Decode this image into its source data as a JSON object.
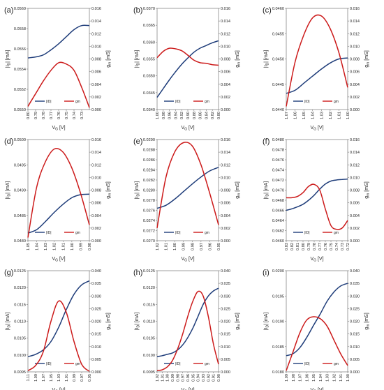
{
  "chart_data": [
    {
      "panel": "(a)",
      "type": "line",
      "x": [
        0.8,
        0.79,
        0.78,
        0.77,
        0.76,
        0.75,
        0.74,
        0.73,
        0.72
      ],
      "x_ticks": [
        "0.80",
        "0.79",
        "0.78",
        "0.77",
        "0.76",
        "0.75",
        "0.74",
        "0.73"
      ],
      "xlabel": "V",
      "xlabel_sub": "G",
      "xlabel_unit": " [V]",
      "ylabel_left": "|I",
      "ylabel_left_sub": "D",
      "ylabel_left_unit": "| [mA]",
      "ylabel_right": "g",
      "ylabel_right_sub": "m",
      "ylabel_right_unit": " [mS]",
      "ylim_left": [
        0.055,
        0.056
      ],
      "y_ticks_left": [
        "0.0550",
        "0.0552",
        "0.0554",
        "0.0556",
        "0.0558",
        "0.0560"
      ],
      "ylim_right": [
        0,
        0.016
      ],
      "y_ticks_right": [
        "0.000",
        "0.002",
        "0.004",
        "0.006",
        "0.008",
        "0.010",
        "0.012",
        "0.014",
        "0.016"
      ],
      "series": [
        {
          "name": "|ID|",
          "axis": "left",
          "color": "#1f3d7a",
          "values": [
            0.05551,
            0.05552,
            0.05554,
            0.05559,
            0.05565,
            0.05572,
            0.05579,
            0.05583,
            0.05583
          ]
        },
        {
          "name": "gm",
          "axis": "right",
          "color": "#cc1a1a",
          "values": [
            0.0005,
            0.0025,
            0.0045,
            0.0062,
            0.0074,
            0.0072,
            0.0062,
            0.0035,
            0.0003
          ]
        }
      ]
    },
    {
      "panel": "(b)",
      "type": "line",
      "x": [
        1.0,
        0.98,
        0.96,
        0.94,
        0.92,
        0.9,
        0.88,
        0.86,
        0.84,
        0.82,
        0.8
      ],
      "x_ticks": [
        "1.00",
        "0.98",
        "0.96",
        "0.94",
        "0.92",
        "0.90",
        "0.88",
        "0.86",
        "0.84",
        "0.82",
        "0.80"
      ],
      "xlabel": "V",
      "xlabel_sub": "G",
      "xlabel_unit": " [V]",
      "ylabel_left": "|I",
      "ylabel_left_sub": "D",
      "ylabel_left_unit": "| [mA]",
      "ylabel_right": "g",
      "ylabel_right_sub": "m",
      "ylabel_right_unit": " [mS]",
      "ylim_left": [
        0.034,
        0.037
      ],
      "y_ticks_left": [
        "0.0340",
        "0.0345",
        "0.0350",
        "0.0355",
        "0.0360",
        "0.0365",
        "0.0370"
      ],
      "ylim_right": [
        0,
        0.016
      ],
      "y_ticks_right": [
        "0.000",
        "0.002",
        "0.004",
        "0.006",
        "0.008",
        "0.010",
        "0.012",
        "0.014",
        "0.016"
      ],
      "series": [
        {
          "name": "|ID|",
          "axis": "left",
          "color": "#1f3d7a",
          "values": [
            0.03436,
            0.03462,
            0.03488,
            0.03512,
            0.03534,
            0.03553,
            0.0357,
            0.03582,
            0.0359,
            0.03598,
            0.03604
          ]
        },
        {
          "name": "gm",
          "axis": "right",
          "color": "#cc1a1a",
          "values": [
            0.0082,
            0.0092,
            0.0097,
            0.0096,
            0.0093,
            0.0086,
            0.0078,
            0.0074,
            0.0073,
            0.0071,
            0.007
          ]
        }
      ]
    },
    {
      "panel": "(c)",
      "type": "line",
      "x": [
        1.07,
        1.06,
        1.05,
        1.04,
        1.03,
        1.02,
        1.01,
        1.0
      ],
      "x_ticks": [
        "1.07",
        "1.06",
        "1.05",
        "1.04",
        "1.03",
        "1.02",
        "1.01",
        "1.00"
      ],
      "xlabel": "V",
      "xlabel_sub": "G",
      "xlabel_unit": " [V]",
      "ylabel_left": "|I",
      "ylabel_left_sub": "D",
      "ylabel_left_unit": "| [mA]",
      "ylabel_right": "g",
      "ylabel_right_sub": "m",
      "ylabel_right_unit": " [mS]",
      "ylim_left": [
        0.044,
        0.046
      ],
      "y_ticks_left": [
        "0.0440",
        "0.0445",
        "0.0450",
        "0.0455",
        "0.0460"
      ],
      "ylim_right": [
        0,
        0.016
      ],
      "y_ticks_right": [
        "0.000",
        "0.002",
        "0.004",
        "0.006",
        "0.008",
        "0.010",
        "0.012",
        "0.014",
        "0.016"
      ],
      "series": [
        {
          "name": "|ID|",
          "axis": "left",
          "color": "#1f3d7a",
          "values": [
            0.04432,
            0.04438,
            0.04452,
            0.04466,
            0.0448,
            0.04492,
            0.045,
            0.04502
          ]
        },
        {
          "name": "gm",
          "axis": "right",
          "color": "#cc1a1a",
          "values": [
            0.0005,
            0.0075,
            0.0118,
            0.0145,
            0.0148,
            0.0128,
            0.009,
            0.0035
          ]
        }
      ]
    },
    {
      "panel": "(d)",
      "type": "line",
      "x": [
        1.05,
        1.04,
        1.03,
        1.02,
        1.01,
        1.0,
        0.99,
        0.98
      ],
      "x_ticks": [
        "1.05",
        "1.04",
        "1.03",
        "1.02",
        "1.01",
        "1.00",
        "0.99",
        "0.98"
      ],
      "xlabel": "V",
      "xlabel_sub": "G",
      "xlabel_unit": " [V]",
      "ylabel_left": "|I",
      "ylabel_left_sub": "D",
      "ylabel_left_unit": "| [mA]",
      "ylabel_right": "g",
      "ylabel_right_sub": "m",
      "ylabel_right_unit": " [mS]",
      "ylim_left": [
        0.048,
        0.05
      ],
      "y_ticks_left": [
        "0.0480",
        "0.0485",
        "0.0490",
        "0.0495",
        "0.0500"
      ],
      "ylim_right": [
        0,
        0.016
      ],
      "y_ticks_right": [
        "0.000",
        "0.002",
        "0.004",
        "0.006",
        "0.008",
        "0.010",
        "0.012",
        "0.014",
        "0.016"
      ],
      "series": [
        {
          "name": "|ID|",
          "axis": "left",
          "color": "#1f3d7a",
          "values": [
            0.04815,
            0.04822,
            0.04838,
            0.04856,
            0.04872,
            0.04885,
            0.04891,
            0.04892
          ]
        },
        {
          "name": "gm",
          "axis": "right",
          "color": "#cc1a1a",
          "values": [
            0.0005,
            0.0085,
            0.0125,
            0.0145,
            0.014,
            0.0115,
            0.0075,
            0.0025
          ]
        }
      ]
    },
    {
      "panel": "(e)",
      "type": "line",
      "x": [
        1.02,
        1.01,
        1.0,
        0.99,
        0.98,
        0.97,
        0.96,
        0.95
      ],
      "x_ticks": [
        "1.02",
        "1.01",
        "1.00",
        "0.99",
        "0.98",
        "0.97",
        "0.96",
        "0.95"
      ],
      "xlabel": "V",
      "xlabel_sub": "G",
      "xlabel_unit": " [V]",
      "ylabel_left": "|I",
      "ylabel_left_sub": "D",
      "ylabel_left_unit": "| [mA]",
      "ylabel_right": "g",
      "ylabel_right_sub": "m",
      "ylabel_right_unit": " [mS]",
      "ylim_left": [
        0.027,
        0.029
      ],
      "y_ticks_left": [
        "0.0270",
        "0.0272",
        "0.0274",
        "0.0276",
        "0.0278",
        "0.0280",
        "0.0282",
        "0.0284",
        "0.0286",
        "0.0288",
        "0.0290"
      ],
      "ylim_right": [
        0,
        0.016
      ],
      "y_ticks_right": [
        "0.000",
        "0.002",
        "0.004",
        "0.006",
        "0.008",
        "0.010",
        "0.012",
        "0.014",
        "0.016"
      ],
      "series": [
        {
          "name": "|ID|",
          "axis": "left",
          "color": "#1f3d7a",
          "values": [
            0.02764,
            0.0277,
            0.02782,
            0.02797,
            0.02812,
            0.02826,
            0.02838,
            0.02845
          ]
        },
        {
          "name": "gm",
          "axis": "right",
          "color": "#cc1a1a",
          "values": [
            0.002,
            0.01,
            0.014,
            0.0155,
            0.015,
            0.012,
            0.0075,
            0.0025
          ]
        }
      ]
    },
    {
      "panel": "(f)",
      "type": "line",
      "x": [
        0.83,
        0.82,
        0.81,
        0.8,
        0.79,
        0.78,
        0.77,
        0.76,
        0.75,
        0.74,
        0.73,
        0.72
      ],
      "x_ticks": [
        "0.83",
        "0.82",
        "0.81",
        "0.80",
        "0.79",
        "0.78",
        "0.77",
        "0.76",
        "0.75",
        "0.74",
        "0.73",
        "0.72"
      ],
      "xlabel": "V",
      "xlabel_sub": "G",
      "xlabel_unit": " [V]",
      "ylabel_left": "|I",
      "ylabel_left_sub": "D",
      "ylabel_left_unit": "| [mA]",
      "ylabel_right": "g",
      "ylabel_right_sub": "m",
      "ylabel_right_unit": " [mS]",
      "ylim_left": [
        0.046,
        0.048
      ],
      "y_ticks_left": [
        "0.0460",
        "0.0462",
        "0.0464",
        "0.0466",
        "0.0468",
        "0.0470",
        "0.0472",
        "0.0474",
        "0.0476",
        "0.0478",
        "0.0480"
      ],
      "ylim_right": [
        0,
        0.016
      ],
      "y_ticks_right": [
        "0.000",
        "0.002",
        "0.004",
        "0.006",
        "0.008",
        "0.010",
        "0.012",
        "0.014",
        "0.016"
      ],
      "series": [
        {
          "name": "|ID|",
          "axis": "left",
          "color": "#1f3d7a",
          "values": [
            0.0466,
            0.04663,
            0.04667,
            0.04672,
            0.0468,
            0.0469,
            0.04702,
            0.04712,
            0.04718,
            0.0472,
            0.04721,
            0.04722
          ]
        },
        {
          "name": "gm",
          "axis": "right",
          "color": "#cc1a1a",
          "values": [
            0.0068,
            0.0068,
            0.007,
            0.0076,
            0.0086,
            0.0089,
            0.008,
            0.005,
            0.0024,
            0.0018,
            0.002,
            0.0032
          ]
        }
      ]
    },
    {
      "panel": "(g)",
      "type": "line",
      "x": [
        1.11,
        1.09,
        1.07,
        1.05,
        1.03,
        1.01,
        0.99,
        0.97,
        0.95
      ],
      "x_ticks": [
        "1.11",
        "1.09",
        "1.07",
        "1.05",
        "1.03",
        "1.01",
        "0.99",
        "0.97",
        "0.95"
      ],
      "xlabel": "V",
      "xlabel_sub": "G",
      "xlabel_unit": " [V]",
      "ylabel_left": "|I",
      "ylabel_left_sub": "D",
      "ylabel_left_unit": "| [mA]",
      "ylabel_right": "g",
      "ylabel_right_sub": "m",
      "ylabel_right_unit": " [mS]",
      "ylim_left": [
        0.0095,
        0.0125
      ],
      "y_ticks_left": [
        "0.0095",
        "0.0100",
        "0.0105",
        "0.0110",
        "0.0115",
        "0.0120",
        "0.0125"
      ],
      "ylim_right": [
        0,
        0.04
      ],
      "y_ticks_right": [
        "0.000",
        "0.005",
        "0.010",
        "0.015",
        "0.020",
        "0.025",
        "0.030",
        "0.035",
        "0.040"
      ],
      "series": [
        {
          "name": "|ID|",
          "axis": "left",
          "color": "#1f3d7a",
          "values": [
            0.00995,
            0.01002,
            0.01015,
            0.0104,
            0.01082,
            0.01135,
            0.0118,
            0.01208,
            0.0122
          ]
        },
        {
          "name": "gm",
          "axis": "right",
          "color": "#cc1a1a",
          "values": [
            0.0005,
            0.0025,
            0.008,
            0.02,
            0.028,
            0.0235,
            0.012,
            0.003,
            0.0002
          ]
        }
      ]
    },
    {
      "panel": "(h)",
      "type": "line",
      "x": [
        1.02,
        1.01,
        1.0,
        0.99,
        0.98,
        0.97,
        0.96,
        0.95,
        0.94,
        0.93,
        0.92,
        0.91,
        0.9
      ],
      "x_ticks": [
        "1.02",
        "1.01",
        "1.00",
        "0.99",
        "0.98",
        "0.97",
        "0.96",
        "0.95",
        "0.94",
        "0.93",
        "0.92",
        "0.91",
        "0.90"
      ],
      "xlabel": "V",
      "xlabel_sub": "G",
      "xlabel_unit": " [V]",
      "ylabel_left": "|I",
      "ylabel_left_sub": "D",
      "ylabel_left_unit": "| [mA]",
      "ylabel_right": "g",
      "ylabel_right_sub": "m",
      "ylabel_right_unit": " [mS]",
      "ylim_left": [
        0.0095,
        0.0125
      ],
      "y_ticks_left": [
        "0.0095",
        "0.0100",
        "0.0105",
        "0.0110",
        "0.0115",
        "0.0120",
        "0.0125"
      ],
      "ylim_right": [
        0,
        0.04
      ],
      "y_ticks_right": [
        "0.000",
        "0.005",
        "0.010",
        "0.015",
        "0.020",
        "0.025",
        "0.030",
        "0.035",
        "0.040"
      ],
      "series": [
        {
          "name": "|ID|",
          "axis": "left",
          "color": "#1f3d7a",
          "values": [
            0.00995,
            0.00998,
            0.01002,
            0.01006,
            0.01015,
            0.0103,
            0.01052,
            0.0108,
            0.01115,
            0.0115,
            0.01175,
            0.0119,
            0.01198
          ]
        },
        {
          "name": "gm",
          "axis": "right",
          "color": "#cc1a1a",
          "values": [
            0.0005,
            0.0008,
            0.002,
            0.0045,
            0.009,
            0.015,
            0.022,
            0.028,
            0.0318,
            0.03,
            0.022,
            0.011,
            0.003
          ]
        }
      ]
    },
    {
      "panel": "(i)",
      "type": "line",
      "x": [
        1.09,
        1.08,
        1.07,
        1.06,
        1.05,
        1.04,
        1.03,
        1.02,
        1.01,
        1.0
      ],
      "x_ticks": [
        "1.09",
        "1.08",
        "1.07",
        "1.06",
        "1.05",
        "1.04",
        "1.03",
        "1.02",
        "1.01",
        "1.00"
      ],
      "xlabel": "V",
      "xlabel_sub": "G",
      "xlabel_unit": " [V]",
      "ylabel_left": "|I",
      "ylabel_left_sub": "D",
      "ylabel_left_unit": "| [mA]",
      "ylabel_right": "g",
      "ylabel_right_sub": "m",
      "ylabel_right_unit": " [mS]",
      "ylim_left": [
        0.018,
        0.02
      ],
      "y_ticks_left": [
        "0.0180",
        "0.0185",
        "0.0190",
        "0.0195",
        "0.0200"
      ],
      "ylim_right": [
        0,
        0.04
      ],
      "y_ticks_right": [
        "0.000",
        "0.005",
        "0.010",
        "0.015",
        "0.020",
        "0.025",
        "0.030",
        "0.035",
        "0.040"
      ],
      "series": [
        {
          "name": "|ID|",
          "axis": "left",
          "color": "#1f3d7a",
          "values": [
            0.01832,
            0.01836,
            0.01848,
            0.01868,
            0.01892,
            0.01915,
            0.0194,
            0.01958,
            0.0197,
            0.01975
          ]
        },
        {
          "name": "gm",
          "axis": "right",
          "color": "#cc1a1a",
          "values": [
            0.0005,
            0.008,
            0.0155,
            0.0205,
            0.0218,
            0.021,
            0.018,
            0.0125,
            0.007,
            0.0025
          ]
        }
      ]
    }
  ]
}
